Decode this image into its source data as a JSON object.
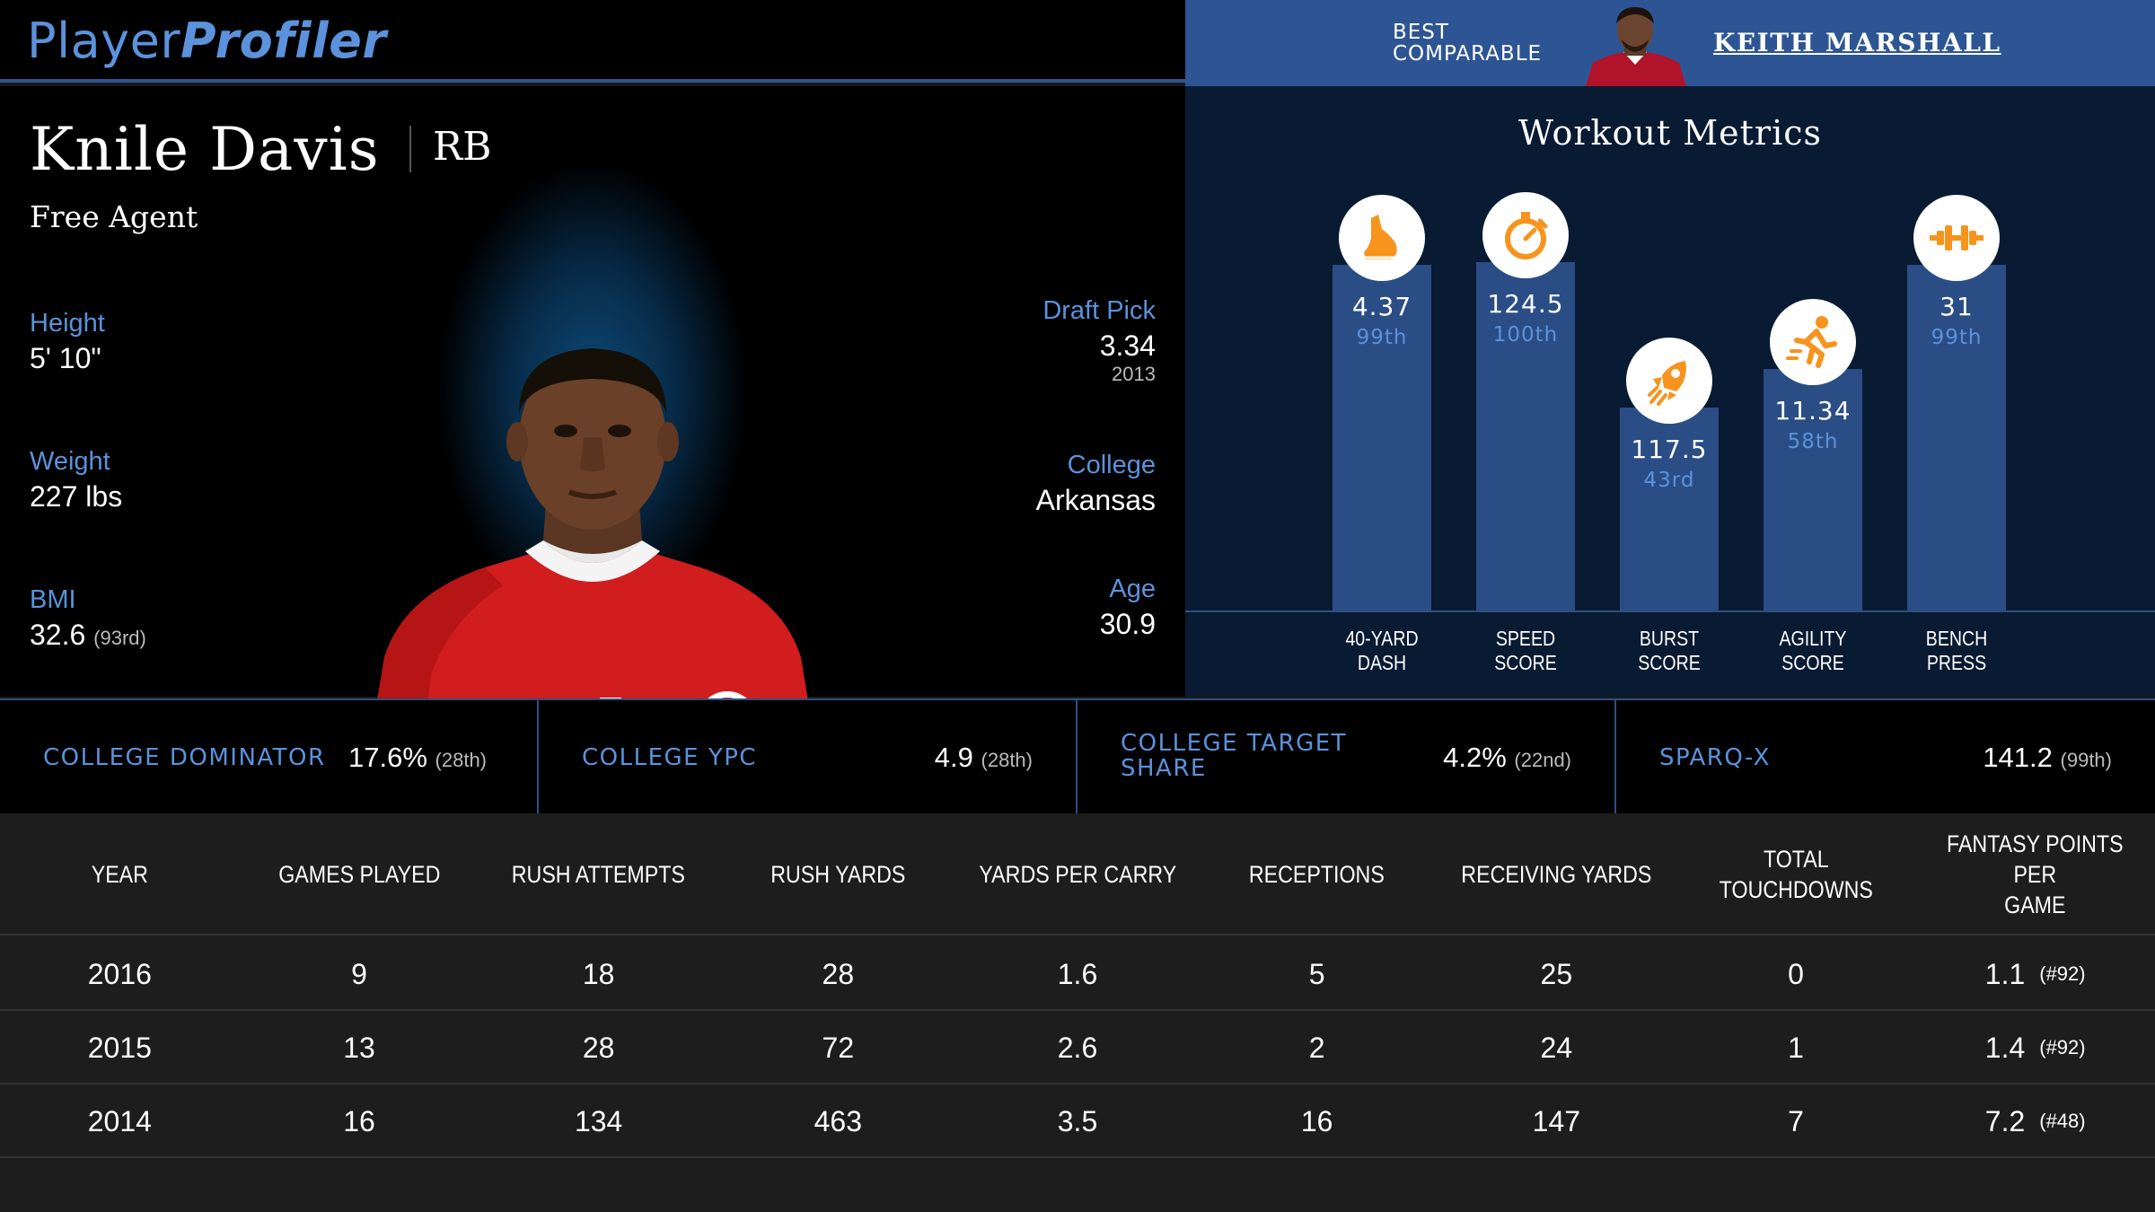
{
  "header": {
    "brand_part1": "Player",
    "brand_part2": "Profiler",
    "comparable_label_line1": "BEST",
    "comparable_label_line2": "COMPARABLE",
    "comparable_name": "KEITH MARSHALL"
  },
  "player": {
    "name": "Knile Davis",
    "position": "RB",
    "team": "Free Agent",
    "height_label": "Height",
    "height": "5' 10\"",
    "weight_label": "Weight",
    "weight": "227 lbs",
    "bmi_label": "BMI",
    "bmi": "32.6",
    "bmi_rank": "(93rd)",
    "draft_label": "Draft Pick",
    "draft_pick": "3.34",
    "draft_year": "2013",
    "college_label": "College",
    "college": "Arkansas",
    "age_label": "Age",
    "age": "30.9"
  },
  "workout": {
    "title": "Workout Metrics",
    "metrics": [
      {
        "label1": "40-YARD",
        "label2": "DASH",
        "value": "4.37",
        "percentile": "99th",
        "pct_num": 99,
        "icon": "shoe-icon"
      },
      {
        "label1": "SPEED",
        "label2": "SCORE",
        "value": "124.5",
        "percentile": "100th",
        "pct_num": 100,
        "icon": "stopwatch-icon"
      },
      {
        "label1": "BURST",
        "label2": "SCORE",
        "value": "117.5",
        "percentile": "43rd",
        "pct_num": 43,
        "icon": "rocket-icon"
      },
      {
        "label1": "AGILITY",
        "label2": "SCORE",
        "value": "11.34",
        "percentile": "58th",
        "pct_num": 58,
        "icon": "runner-icon"
      },
      {
        "label1": "BENCH",
        "label2": "PRESS",
        "value": "31",
        "percentile": "99th",
        "pct_num": 99,
        "icon": "dumbbell-icon"
      }
    ],
    "accent": "#f7941d"
  },
  "stats_strip": [
    {
      "label1": "COLLEGE DOMINATOR",
      "label2": "",
      "value": "17.6%",
      "rank": "(28th)"
    },
    {
      "label1": "COLLEGE YPC",
      "label2": "",
      "value": "4.9",
      "rank": "(28th)"
    },
    {
      "label1": "COLLEGE TARGET",
      "label2": "SHARE",
      "value": "4.2%",
      "rank": "(22nd)"
    },
    {
      "label1": "SPARQ-X",
      "label2": "",
      "value": "141.2",
      "rank": "(99th)"
    }
  ],
  "table": {
    "headers": [
      {
        "l1": "YEAR",
        "l2": ""
      },
      {
        "l1": "GAMES PLAYED",
        "l2": ""
      },
      {
        "l1": "RUSH ATTEMPTS",
        "l2": ""
      },
      {
        "l1": "RUSH YARDS",
        "l2": ""
      },
      {
        "l1": "YARDS PER CARRY",
        "l2": ""
      },
      {
        "l1": "RECEPTIONS",
        "l2": ""
      },
      {
        "l1": "RECEIVING YARDS",
        "l2": ""
      },
      {
        "l1": "TOTAL TOUCHDOWNS",
        "l2": ""
      },
      {
        "l1": "FANTASY POINTS PER",
        "l2": "GAME"
      }
    ],
    "rows": [
      {
        "cells": [
          "2016",
          "9",
          "18",
          "28",
          "1.6",
          "5",
          "25",
          "0",
          "1.1"
        ],
        "rank": "(#92)"
      },
      {
        "cells": [
          "2015",
          "13",
          "28",
          "72",
          "2.6",
          "2",
          "24",
          "1",
          "1.4"
        ],
        "rank": "(#92)"
      },
      {
        "cells": [
          "2014",
          "16",
          "134",
          "463",
          "3.5",
          "16",
          "147",
          "7",
          "7.2"
        ],
        "rank": "(#48)"
      }
    ]
  }
}
